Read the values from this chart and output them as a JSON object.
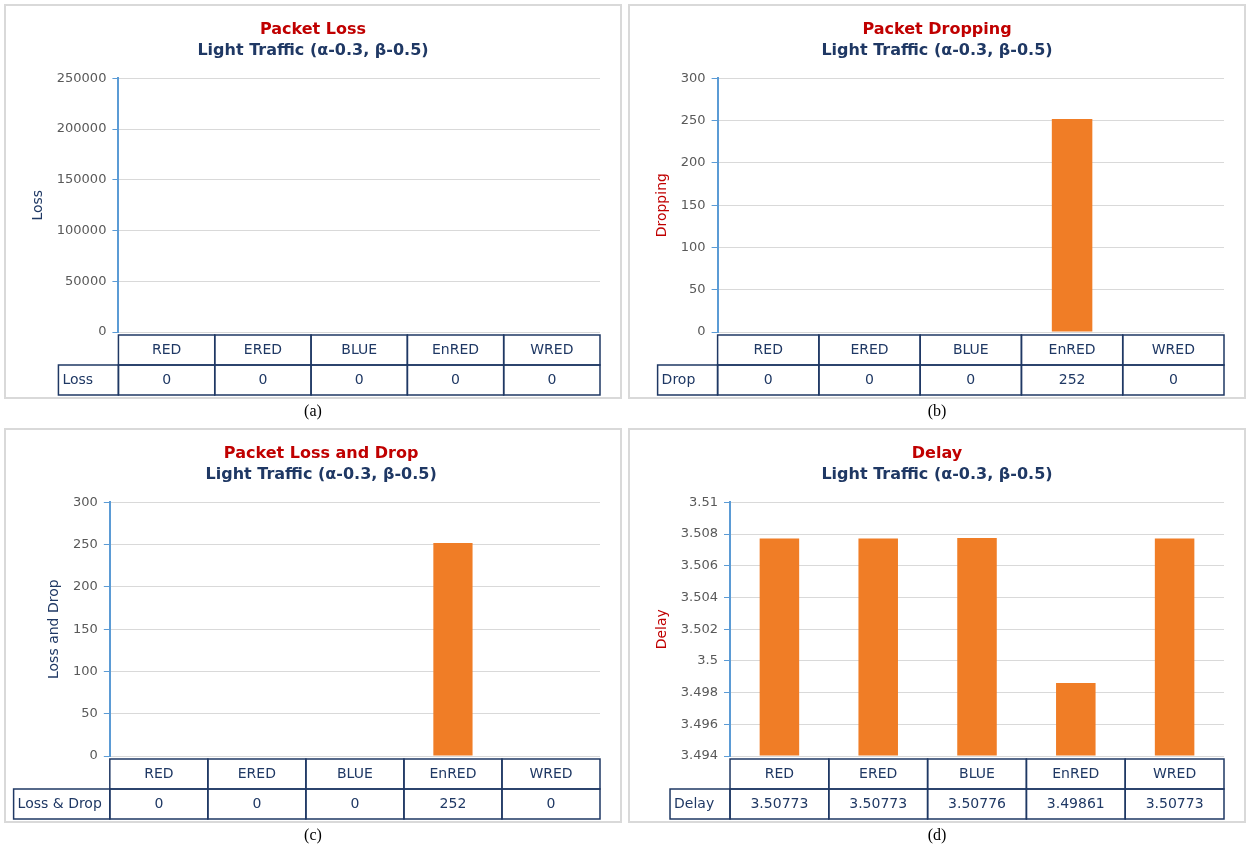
{
  "chart_data": [
    {
      "type": "bar",
      "title": "Packet Loss",
      "subtitle": "Light Traffic (α-0.3, β-0.5)",
      "ylabel": "Loss",
      "categories": [
        "RED",
        "ERED",
        "BLUE",
        "EnRED",
        "WRED"
      ],
      "series": [
        {
          "name": "Loss",
          "values": [
            0,
            0,
            0,
            0,
            0
          ]
        }
      ],
      "ylim": [
        0,
        250000
      ],
      "yticks": [
        0,
        50000,
        100000,
        150000,
        200000,
        250000
      ],
      "grid": "y",
      "legend": false,
      "data_labels": true,
      "annotations": [
        "(a)"
      ]
    },
    {
      "type": "bar",
      "title": "Packet Dropping",
      "subtitle": "Light Traffic (α-0.3, β-0.5)",
      "ylabel": "Dropping",
      "categories": [
        "RED",
        "ERED",
        "BLUE",
        "EnRED",
        "WRED"
      ],
      "series": [
        {
          "name": "Drop",
          "color": "#f07d26",
          "values": [
            0,
            0,
            0,
            252,
            0
          ]
        }
      ],
      "ylim": [
        0,
        300
      ],
      "yticks": [
        0,
        50,
        100,
        150,
        200,
        250,
        300
      ],
      "grid": "y",
      "legend": false,
      "data_labels": true,
      "annotations": [
        "(b)"
      ]
    },
    {
      "type": "bar",
      "title": "Packet Loss and Drop",
      "subtitle": "Light Traffic (α-0.3, β-0.5)",
      "ylabel": "Loss and Drop",
      "categories": [
        "RED",
        "ERED",
        "BLUE",
        "EnRED",
        "WRED"
      ],
      "series": [
        {
          "name": "Loss & Drop",
          "color": "#f07d26",
          "values": [
            0,
            0,
            0,
            252,
            0
          ]
        }
      ],
      "ylim": [
        0,
        300
      ],
      "yticks": [
        0,
        50,
        100,
        150,
        200,
        250,
        300
      ],
      "grid": "y",
      "legend": false,
      "data_labels": true,
      "annotations": [
        "(c)"
      ]
    },
    {
      "type": "bar",
      "title": "Delay",
      "subtitle": "Light Traffic (α-0.3, β-0.5)",
      "ylabel": "Delay",
      "categories": [
        "RED",
        "ERED",
        "BLUE",
        "EnRED",
        "WRED"
      ],
      "series": [
        {
          "name": "Delay",
          "color": "#f07d26",
          "values": [
            3.50773,
            3.50773,
            3.50776,
            3.49861,
            3.50773
          ]
        }
      ],
      "ylim": [
        3.494,
        3.51
      ],
      "yticks": [
        3.494,
        3.496,
        3.498,
        3.5,
        3.502,
        3.504,
        3.506,
        3.508,
        3.51
      ],
      "grid": "y",
      "legend": false,
      "data_labels": true,
      "annotations": [
        "(d)"
      ]
    }
  ]
}
